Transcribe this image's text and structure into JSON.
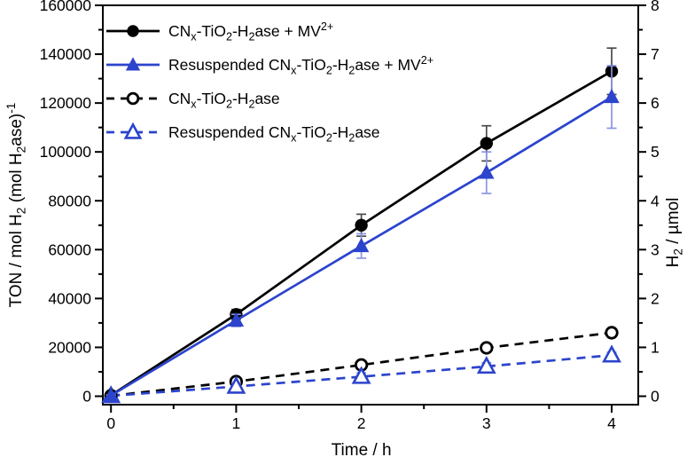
{
  "figure": {
    "background": "#ffffff",
    "frame_color": "#000000",
    "x_axis": {
      "label": "Time / h",
      "min": 0,
      "max": 4,
      "major_ticks": [
        0,
        1,
        2,
        3,
        4
      ],
      "tick_labels": [
        "0",
        "1",
        "2",
        "3",
        "4"
      ],
      "minor_ticks": [
        0.5,
        1.5,
        2.5,
        3.5
      ]
    },
    "y_left": {
      "label": "TON / mol H_{2} (mol H_{2}ase)^{-1}",
      "min": 0,
      "max": 160000,
      "major_ticks": [
        0,
        20000,
        40000,
        60000,
        80000,
        100000,
        120000,
        140000,
        160000
      ],
      "tick_labels": [
        "0",
        "20000",
        "40000",
        "60000",
        "80000",
        "100000",
        "120000",
        "140000",
        "160000"
      ],
      "minor_step": 10000
    },
    "y_right": {
      "label": "H_{2} / µmol",
      "min": 0,
      "max": 8,
      "major_ticks": [
        0,
        1,
        2,
        3,
        4,
        5,
        6,
        7,
        8
      ],
      "tick_labels": [
        "0",
        "1",
        "2",
        "3",
        "4",
        "5",
        "6",
        "7",
        "8"
      ],
      "minor_step": 0.5,
      "ton_per_umol": 20000
    },
    "legend_position": "top-left"
  },
  "chart_data": {
    "type": "line",
    "x": [
      0,
      1,
      2,
      3,
      4
    ],
    "grid": false,
    "series": [
      {
        "id": "cnx-tio2-h2ase-mv",
        "name": "CN_{x}-TiO_{2}-H_{2}ase + MV^{2+}",
        "color": "#000000",
        "error_color": "#4a4a4a",
        "marker": "circle",
        "marker_fill": "filled",
        "line_style": "solid",
        "values_ton": [
          400,
          33500,
          70000,
          103500,
          133000
        ],
        "errors_ton": [
          300,
          2000,
          4500,
          7200,
          9500
        ],
        "values_umol": [
          0.02,
          1.68,
          3.5,
          5.18,
          6.65
        ]
      },
      {
        "id": "resuspended-cnx-tio2-h2ase-mv",
        "name": "Resuspended CN_{x}-TiO_{2}-H_{2}ase + MV^{2+}",
        "color": "#2c44cc",
        "error_color": "#8a94e2",
        "marker": "triangle",
        "marker_fill": "filled",
        "line_style": "solid",
        "values_ton": [
          300,
          31000,
          61500,
          91500,
          122500
        ],
        "errors_ton": [
          300,
          2500,
          5000,
          8500,
          12800
        ],
        "values_umol": [
          0.015,
          1.55,
          3.08,
          4.58,
          6.13
        ]
      },
      {
        "id": "cnx-tio2-h2ase",
        "name": "CN_{x}-TiO_{2}-H_{2}ase",
        "color": "#000000",
        "error_color": "#4a4a4a",
        "marker": "circle",
        "marker_fill": "open",
        "line_style": "dashed",
        "values_ton": [
          150,
          6000,
          12800,
          19800,
          26000
        ],
        "errors_ton": [
          150,
          900,
          1300,
          1000,
          900
        ],
        "values_umol": [
          0.01,
          0.3,
          0.64,
          0.99,
          1.3
        ]
      },
      {
        "id": "resuspended-cnx-tio2-h2ase",
        "name": "Resuspended CN_{x}-TiO_{2}-H_{2}ase",
        "color": "#2c44cc",
        "error_color": "#8a94e2",
        "marker": "triangle",
        "marker_fill": "open",
        "line_style": "dashed",
        "values_ton": [
          150,
          4000,
          8000,
          12200,
          16800
        ],
        "errors_ton": [
          150,
          1400,
          1600,
          1500,
          1200
        ],
        "values_umol": [
          0.01,
          0.2,
          0.4,
          0.61,
          0.84
        ]
      }
    ]
  }
}
